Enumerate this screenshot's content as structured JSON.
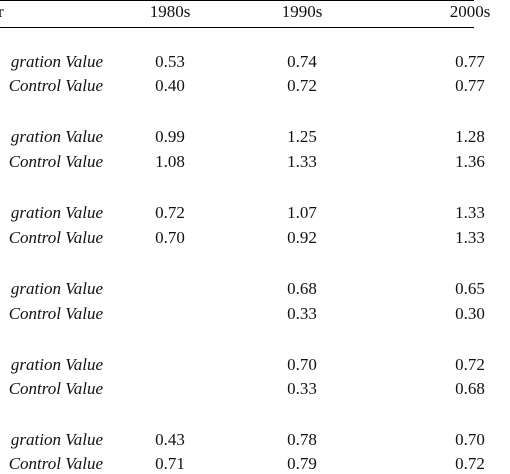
{
  "table": {
    "header": {
      "stub": "r",
      "columns": [
        "1980s",
        "1990s",
        "2000s"
      ]
    },
    "rows": [
      {
        "label": "gration Value",
        "values": [
          "0.53",
          "0.74",
          "0.77"
        ]
      },
      {
        "label": "Control Value",
        "values": [
          "0.40",
          "0.72",
          "0.77"
        ]
      },
      {
        "label": "gration Value",
        "values": [
          "0.99",
          "1.25",
          "1.28"
        ]
      },
      {
        "label": "Control Value",
        "values": [
          "1.08",
          "1.33",
          "1.36"
        ]
      },
      {
        "label": "gration Value",
        "values": [
          "0.72",
          "1.07",
          "1.33"
        ]
      },
      {
        "label": "Control Value",
        "values": [
          "0.70",
          "0.92",
          "1.33"
        ]
      },
      {
        "label": "gration Value",
        "values": [
          "",
          "0.68",
          "0.65"
        ]
      },
      {
        "label": "Control Value",
        "values": [
          "",
          "0.33",
          "0.30"
        ]
      },
      {
        "label": "gration Value",
        "values": [
          "",
          "0.70",
          "0.72"
        ]
      },
      {
        "label": "Control Value",
        "values": [
          "",
          "0.33",
          "0.68"
        ]
      },
      {
        "label": "gration Value",
        "values": [
          "0.43",
          "0.78",
          "0.70"
        ]
      },
      {
        "label": "Control Value",
        "values": [
          "0.71",
          "0.79",
          "0.72"
        ]
      }
    ]
  }
}
